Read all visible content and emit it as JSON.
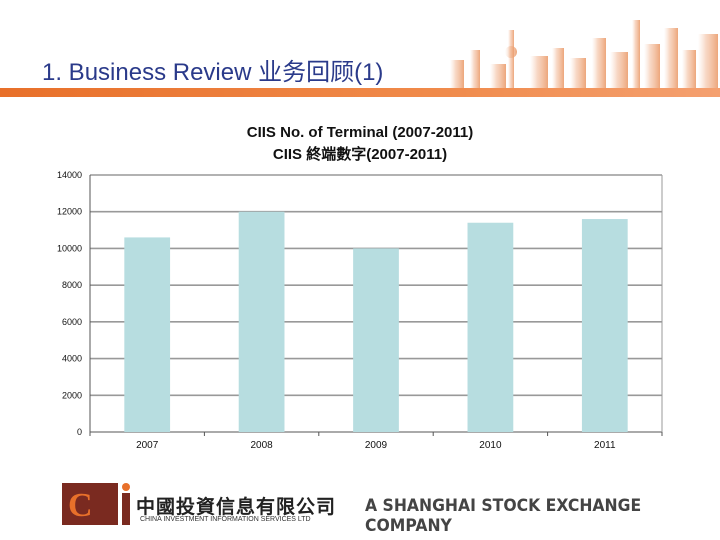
{
  "header": {
    "title": "1. Business Review 业务回顾(1)",
    "accent_color": "#e8702a",
    "title_color": "#2a3a8a"
  },
  "chart_data": {
    "type": "bar",
    "title": "CIIS No. of Terminal (2007-2011)",
    "subtitle": "CIIS 終端數字(2007-2011)",
    "categories": [
      "2007",
      "2008",
      "2009",
      "2010",
      "2011"
    ],
    "values": [
      10600,
      12000,
      10000,
      11400,
      11600
    ],
    "ylim": [
      0,
      14000
    ],
    "yticks": [
      0,
      2000,
      4000,
      6000,
      8000,
      10000,
      12000,
      14000
    ],
    "ytick_labels": [
      "0",
      "2000",
      "4000",
      "6000",
      "8000",
      "10000",
      "12000",
      "14000"
    ],
    "grid": true,
    "bar_color": "#b7dde0"
  },
  "footer": {
    "logo_text": "Ci",
    "company_cn": "中國投資信息有限公司",
    "company_en": "CHINA INVESTMENT INFORMATION SERVICES LTD",
    "tagline": "A SHANGHAI STOCK EXCHANGE COMPANY"
  }
}
